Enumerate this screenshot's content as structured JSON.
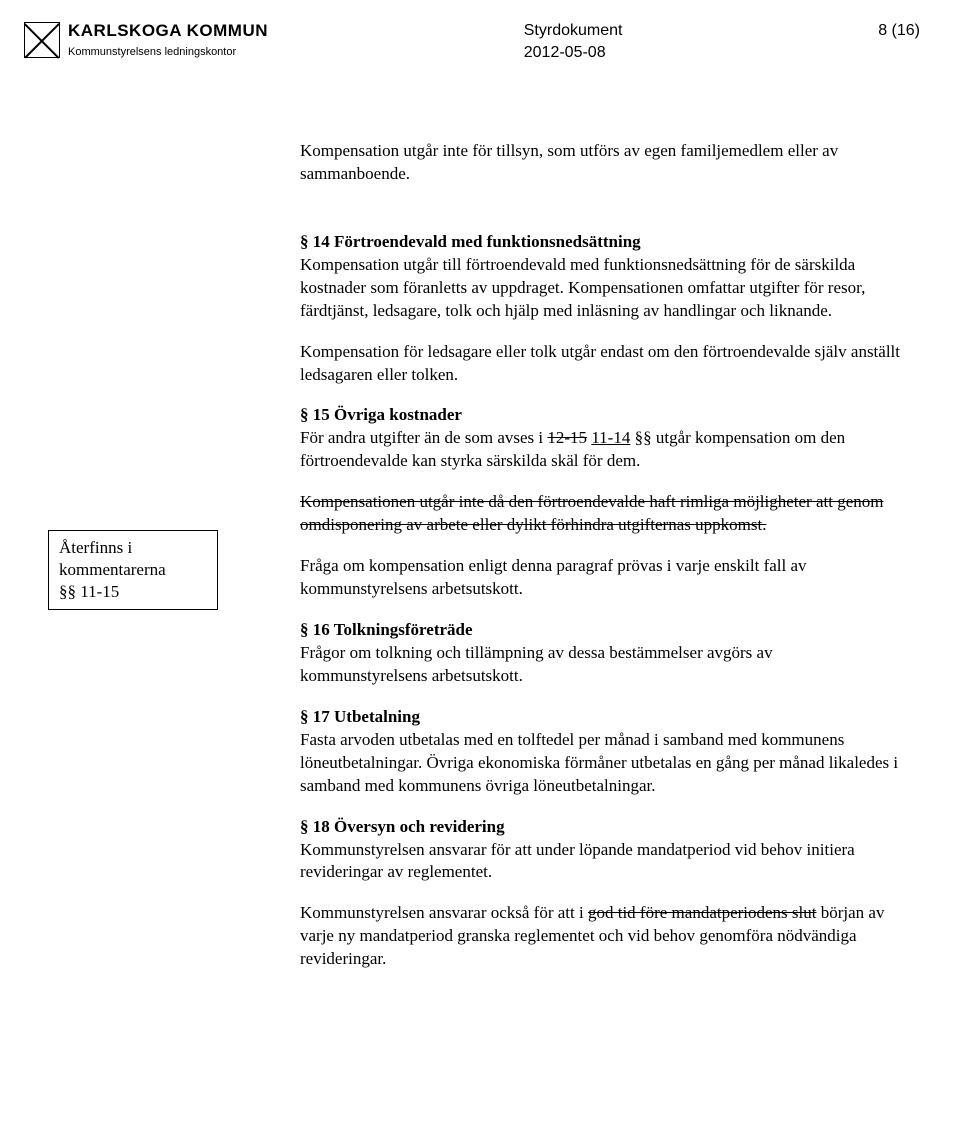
{
  "header": {
    "org_name": "KARLSKOGA KOMMUN",
    "org_sub": "Kommunstyrelsens ledningskontor",
    "doc_type": "Styrdokument",
    "doc_date": "2012-05-08",
    "page_num": "8 (16)"
  },
  "annotation": {
    "line1": "Återfinns i",
    "line2": "kommentarerna",
    "line3": "§§ 11-15"
  },
  "body": {
    "p_intro": "Kompensation utgår inte för tillsyn, som utförs av egen familjemedlem eller av sammanboende.",
    "s14_head": "§ 14 Förtroendevald med funktionsnedsättning",
    "s14_p1": "Kompensation utgår till förtroendevald med funktionsnedsättning för de särskilda kostnader som föranletts av uppdraget. Kompensationen omfattar utgifter för resor, färdtjänst, ledsagare, tolk och hjälp med inläsning av handlingar och liknande.",
    "s14_p2": "Kompensation för ledsagare eller tolk utgår endast om den förtroendevalde själv anställt ledsagaren eller tolken.",
    "s15_head": "§ 15 Övriga kostnader",
    "s15_p1_a": "För andra utgifter än de som avses i ",
    "s15_p1_strike1": "12-15",
    "s15_p1_b": " ",
    "s15_p1_under": "11-14",
    "s15_p1_c": " §§ utgår kompensation om den förtroendevalde kan styrka särskilda skäl för dem.",
    "s15_p2_strike": "Kompensationen utgår inte då den förtroendevalde haft rimliga möjligheter att genom omdisponering av arbete eller dylikt förhindra utgifternas uppkomst.",
    "s15_p3": "Fråga om kompensation enligt denna paragraf prövas i varje enskilt fall av kommunstyrelsens arbetsutskott.",
    "s16_head": "§ 16 Tolkningsföreträde",
    "s16_p1": "Frågor om tolkning och tillämpning av dessa bestämmelser avgörs av kommunstyrelsens arbetsutskott.",
    "s17_head": "§ 17 Utbetalning",
    "s17_p1": "Fasta arvoden utbetalas med en tolftedel per månad i samband med kommunens löneutbetalningar. Övriga ekonomiska förmåner utbetalas en gång per månad likaledes i samband med kommunens övriga löneutbetalningar.",
    "s18_head": "§ 18 Översyn och revidering",
    "s18_p1": "Kommunstyrelsen ansvarar för att under löpande mandatperiod vid behov initiera revideringar av reglementet.",
    "s18_p2_a": "Kommunstyrelsen ansvarar också för att i ",
    "s18_p2_strike": "god tid före mandatperiodens slut",
    "s18_p2_b": " början av varje ny mandatperiod granska reglementet och vid behov genomföra nödvändiga revideringar."
  }
}
